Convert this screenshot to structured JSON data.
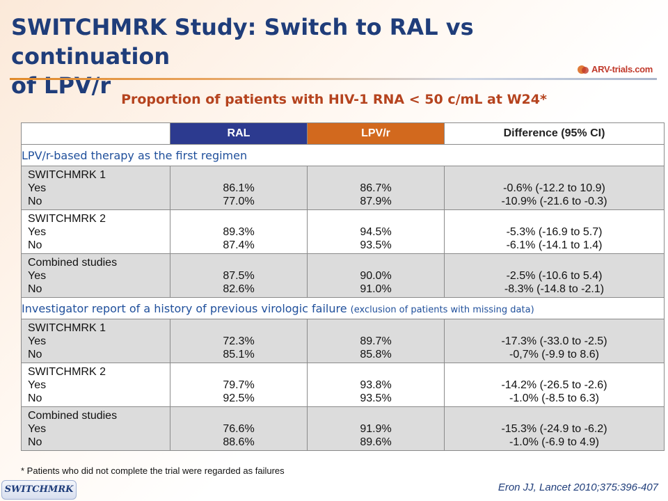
{
  "slide": {
    "title_line1": "SWITCHMRK Study: Switch to RAL vs continuation",
    "title_line2": "of LPV/r",
    "subtitle": "Proportion of patients with HIV-1 RNA < 50 c/mL at W24*",
    "logo_text": "ARV-trials.com",
    "footnote": "* Patients who did not complete the trial were regarded as failures",
    "badge": "SWITCHMRK",
    "citation": "Eron JJ, Lancet 2010;375:396-407",
    "colors": {
      "ral": "#2c3a8f",
      "lpv": "#d2691e",
      "title": "#1f3d7a",
      "subtitle": "#b5431e"
    }
  },
  "table": {
    "headers": {
      "ral": "RAL",
      "lpv": "LPV/r",
      "diff": "Difference (95% CI)"
    },
    "section1": {
      "label": "LPV/r-based therapy as the first regimen",
      "rows": [
        {
          "name": "SWITCHMRK 1",
          "yes": "Yes",
          "no": "No",
          "ral_yes": "86.1%",
          "ral_no": "77.0%",
          "lpv_yes": "86.7%",
          "lpv_no": "87.9%",
          "diff_yes": "-0.6% (-12.2 to 10.9)",
          "diff_no": "-10.9% (-21.6 to -0.3)"
        },
        {
          "name": "SWITCHMRK 2",
          "yes": "Yes",
          "no": "No",
          "ral_yes": "89.3%",
          "ral_no": "87.4%",
          "lpv_yes": "94.5%",
          "lpv_no": "93.5%",
          "diff_yes": "-5.3% (-16.9 to 5.7)",
          "diff_no": "-6.1% (-14.1 to 1.4)"
        },
        {
          "name": "Combined studies",
          "yes": "Yes",
          "no": "No",
          "ral_yes": "87.5%",
          "ral_no": "82.6%",
          "lpv_yes": "90.0%",
          "lpv_no": "91.0%",
          "diff_yes": "-2.5% (-10.6 to 5.4)",
          "diff_no": "-8.3% (-14.8 to -2.1)"
        }
      ]
    },
    "section2": {
      "label": "Investigator report of a history of previous virologic failure",
      "note": "(exclusion of patients with missing data)",
      "rows": [
        {
          "name": "SWITCHMRK 1",
          "yes": "Yes",
          "no": "No",
          "ral_yes": "72.3%",
          "ral_no": "85.1%",
          "lpv_yes": "89.7%",
          "lpv_no": "85.8%",
          "diff_yes": "-17.3% (-33.0 to -2.5)",
          "diff_no": "-0,7% (-9.9 to 8.6)"
        },
        {
          "name": "SWITCHMRK 2",
          "yes": "Yes",
          "no": "No",
          "ral_yes": "79.7%",
          "ral_no": "92.5%",
          "lpv_yes": "93.8%",
          "lpv_no": "93.5%",
          "diff_yes": "-14.2% (-26.5 to -2.6)",
          "diff_no": "-1.0% (-8.5 to 6.3)"
        },
        {
          "name": "Combined studies",
          "yes": "Yes",
          "no": "No",
          "ral_yes": "76.6%",
          "ral_no": "88.6%",
          "lpv_yes": "91.9%",
          "lpv_no": "89.6%",
          "diff_yes": "-15.3% (-24.9 to -6.2)",
          "diff_no": "-1.0% (-6.9 to 4.9)"
        }
      ]
    }
  }
}
